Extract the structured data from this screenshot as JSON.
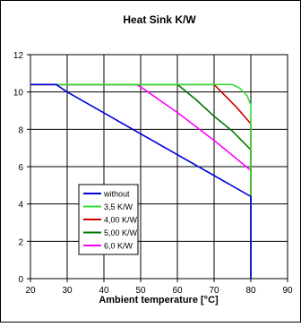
{
  "chart_data": {
    "type": "line",
    "title": "Heat Sink K/W",
    "xlabel": "Ambient temperature [°C]",
    "ylabel": "",
    "xlim": [
      20,
      90
    ],
    "ylim": [
      0,
      12
    ],
    "xticks": [
      20,
      30,
      40,
      50,
      60,
      70,
      80,
      90
    ],
    "yticks": [
      0,
      2,
      4,
      6,
      8,
      10,
      12
    ],
    "grid": true,
    "legend_position": "bottom-left",
    "series": [
      {
        "name": "without",
        "color": "#0000dd",
        "x": [
          20,
          27,
          30,
          80,
          80
        ],
        "y": [
          10.4,
          10.4,
          10.0,
          4.4,
          0
        ]
      },
      {
        "name": "3,5 K/W",
        "color": "#33dd33",
        "x": [
          20,
          75,
          77,
          79,
          80,
          80
        ],
        "y": [
          10.4,
          10.4,
          10.2,
          9.8,
          9.3,
          0
        ]
      },
      {
        "name": "4,00 K/W",
        "color": "#cc0000",
        "x": [
          20,
          70,
          73,
          76,
          80,
          80
        ],
        "y": [
          10.4,
          10.4,
          9.8,
          9.2,
          8.3,
          0
        ]
      },
      {
        "name": "5,00 K/W",
        "color": "#007700",
        "x": [
          20,
          60,
          65,
          70,
          75,
          80,
          80
        ],
        "y": [
          10.4,
          10.4,
          9.6,
          8.7,
          7.9,
          6.9,
          0
        ]
      },
      {
        "name": "6,0 K/W",
        "color": "#ff00ff",
        "x": [
          20,
          49,
          52,
          60,
          70,
          80,
          80
        ],
        "y": [
          10.4,
          10.4,
          10.0,
          8.9,
          7.4,
          5.8,
          0
        ]
      }
    ]
  }
}
